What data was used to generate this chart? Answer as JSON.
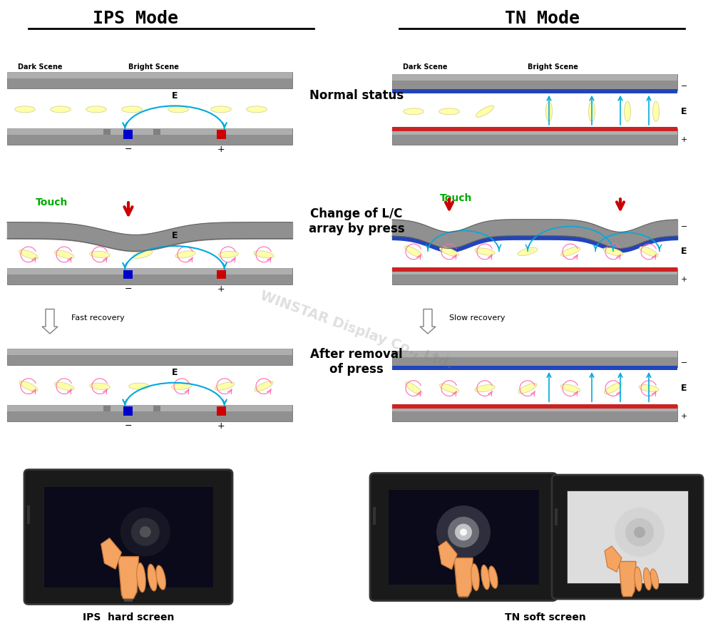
{
  "title_ips": "IPS Mode",
  "title_tn": "TN Mode",
  "label_normal": "Normal status",
  "label_change": "Change of L/C\narray by press",
  "label_after": "After removal\nof press",
  "label_ips_screen": "IPS  hard screen",
  "label_tn_screen": "TN soft screen",
  "label_touch": "Touch",
  "label_fast": "Fast recovery",
  "label_slow": "Slow recovery",
  "label_dark": "Dark Scene",
  "label_bright": "Bright Scene",
  "label_E": "E",
  "label_minus": "−",
  "label_plus": "+",
  "bg_color": "#ffffff",
  "gray_color": "#a0a0a0",
  "dark_gray": "#606060",
  "blue_color": "#0000cc",
  "red_color": "#cc0000",
  "cyan_color": "#00aadd",
  "green_color": "#00aa00",
  "yellow_lc": "#ffffaa",
  "watermark": "WINSTAR Display Co., Ltd."
}
